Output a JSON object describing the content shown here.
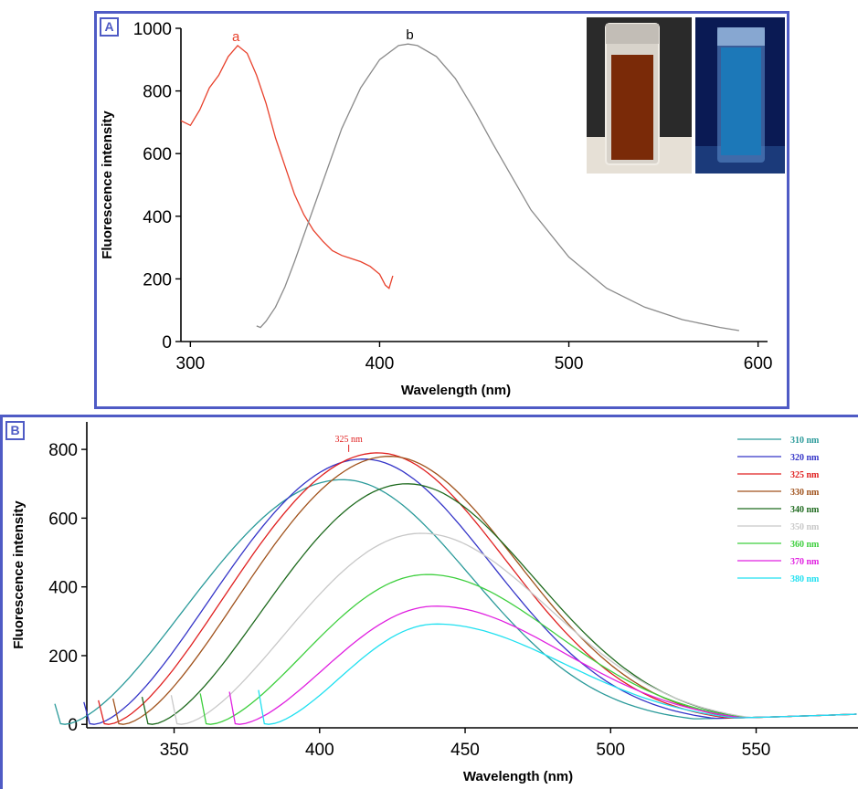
{
  "chart_data": [
    {
      "panel": "A",
      "type": "line",
      "xlabel": "Wavelength (nm)",
      "ylabel": "Fluorescence intensity",
      "xlim": [
        295,
        605
      ],
      "ylim": [
        0,
        1000
      ],
      "xticks": [
        300,
        400,
        500,
        600
      ],
      "yticks": [
        0,
        200,
        400,
        600,
        800,
        1000
      ],
      "grid": false,
      "series": [
        {
          "name": "a",
          "color": "#e8412c",
          "x": [
            295,
            300,
            305,
            310,
            315,
            320,
            325,
            330,
            335,
            340,
            345,
            350,
            355,
            360,
            365,
            370,
            375,
            380,
            385,
            390,
            395,
            400,
            403,
            405,
            407
          ],
          "y": [
            705,
            690,
            740,
            810,
            850,
            910,
            945,
            920,
            850,
            760,
            650,
            560,
            470,
            405,
            355,
            320,
            290,
            275,
            265,
            255,
            240,
            215,
            180,
            170,
            210
          ]
        },
        {
          "name": "b",
          "color": "#8a8a8a",
          "x": [
            335,
            337,
            340,
            345,
            350,
            355,
            360,
            370,
            380,
            390,
            400,
            410,
            415,
            420,
            430,
            440,
            450,
            460,
            480,
            500,
            520,
            540,
            560,
            580,
            590
          ],
          "y": [
            50,
            45,
            65,
            110,
            175,
            255,
            340,
            510,
            680,
            810,
            900,
            945,
            950,
            945,
            910,
            840,
            740,
            630,
            420,
            270,
            170,
            110,
            70,
            45,
            35
          ]
        }
      ]
    },
    {
      "panel": "B",
      "type": "line",
      "xlabel": "Wavelength (nm)",
      "ylabel": "Fluorescence intensity",
      "xlim": [
        320,
        585
      ],
      "ylim": [
        -10,
        880
      ],
      "xticks": [
        350,
        400,
        450,
        500,
        550
      ],
      "yticks": [
        0,
        200,
        400,
        600,
        800
      ],
      "grid": false,
      "legend_position": "top-right",
      "annotation": "325 nm",
      "series": [
        {
          "name": "310 nm",
          "color": "#2a9a9a",
          "ex": 310,
          "peak_x": 408,
          "peak_y": 712
        },
        {
          "name": "320 nm",
          "color": "#3535c8",
          "ex": 320,
          "peak_x": 415,
          "peak_y": 772
        },
        {
          "name": "325 nm",
          "color": "#e02020",
          "ex": 325,
          "peak_x": 420,
          "peak_y": 790
        },
        {
          "name": "330 nm",
          "color": "#a0521c",
          "ex": 330,
          "peak_x": 424,
          "peak_y": 780
        },
        {
          "name": "340 nm",
          "color": "#1e6a1e",
          "ex": 340,
          "peak_x": 430,
          "peak_y": 700
        },
        {
          "name": "350 nm",
          "color": "#c8c8c8",
          "ex": 350,
          "peak_x": 435,
          "peak_y": 556
        },
        {
          "name": "360 nm",
          "color": "#3ecf3e",
          "ex": 360,
          "peak_x": 437,
          "peak_y": 436
        },
        {
          "name": "370 nm",
          "color": "#e020e0",
          "ex": 370,
          "peak_x": 440,
          "peak_y": 344
        },
        {
          "name": "380 nm",
          "color": "#20e0f0",
          "ex": 380,
          "peak_x": 440,
          "peak_y": 292
        }
      ]
    }
  ],
  "panel_labels": {
    "a": "A",
    "b": "B"
  },
  "inset": {
    "vial_left_color": "#7a2a08",
    "vial_right_color": "#1c78b8"
  }
}
